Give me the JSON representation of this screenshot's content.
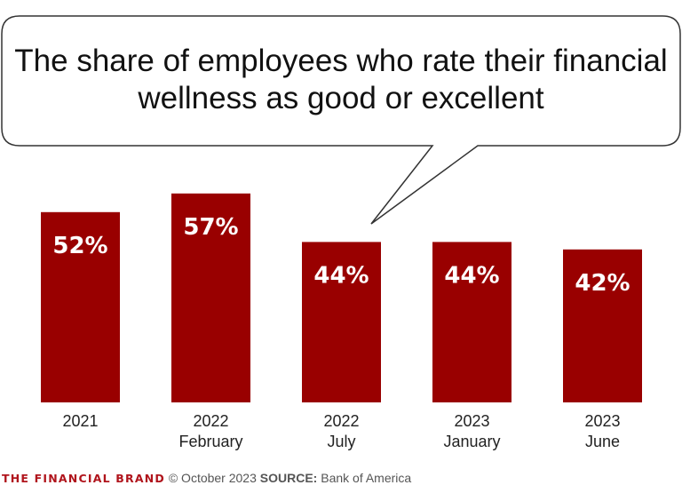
{
  "chart_data": {
    "type": "bar",
    "title": "The share of employees who rate their financial wellness as good or excellent",
    "categories": [
      [
        "2021"
      ],
      [
        "2022",
        "February"
      ],
      [
        "2022",
        "July"
      ],
      [
        "2023",
        "January"
      ],
      [
        "2023",
        "June"
      ]
    ],
    "values": [
      52,
      57,
      44,
      44,
      42
    ],
    "data_labels": [
      "52%",
      "57%",
      "44%",
      "44%",
      "42%"
    ],
    "bar_color": "#990000",
    "label_color": "#ffffff",
    "grid": false,
    "legend": "none"
  },
  "footer": {
    "brand": "THE FINANCIAL BRAND",
    "copyright": "© October 2023",
    "source_label": "SOURCE:",
    "source": "Bank of America"
  }
}
